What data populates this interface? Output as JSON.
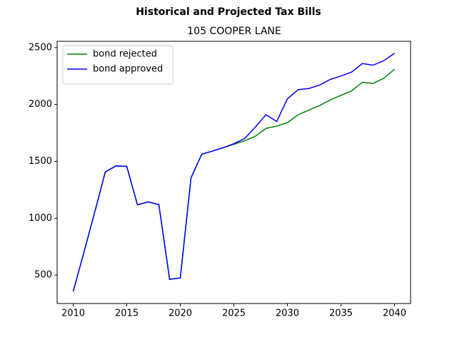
{
  "chart_data": {
    "type": "line",
    "title": "Historical and Projected Tax Bills",
    "subtitle": "105 COOPER LANE",
    "x": [
      2010,
      2011,
      2012,
      2013,
      2014,
      2015,
      2016,
      2017,
      2018,
      2019,
      2020,
      2021,
      2022,
      2023,
      2024,
      2025,
      2026,
      2027,
      2028,
      2029,
      2030,
      2031,
      2032,
      2033,
      2034,
      2035,
      2036,
      2037,
      2038,
      2039,
      2040
    ],
    "series": [
      {
        "name": "bond rejected",
        "color": "#008000",
        "values": [
          355,
          700,
          1050,
          1407,
          1460,
          1456,
          1118,
          1143,
          1120,
          463,
          475,
          1355,
          1562,
          1590,
          1620,
          1650,
          1680,
          1720,
          1790,
          1810,
          1840,
          1910,
          1950,
          1990,
          2040,
          2080,
          2120,
          2195,
          2185,
          2230,
          2310
        ]
      },
      {
        "name": "bond approved",
        "color": "#0000ff",
        "values": [
          355,
          700,
          1050,
          1407,
          1460,
          1456,
          1118,
          1143,
          1120,
          463,
          475,
          1355,
          1562,
          1590,
          1620,
          1655,
          1700,
          1800,
          1910,
          1850,
          2050,
          2130,
          2140,
          2170,
          2220,
          2250,
          2285,
          2360,
          2345,
          2385,
          2450
        ]
      }
    ],
    "xlim": [
      2008.5,
      2041.5
    ],
    "ylim": [
      250,
      2555
    ],
    "xticks": [
      2010,
      2015,
      2020,
      2025,
      2030,
      2035,
      2040
    ],
    "yticks": [
      500,
      1000,
      1500,
      2000,
      2500
    ],
    "legend": "upper left"
  }
}
